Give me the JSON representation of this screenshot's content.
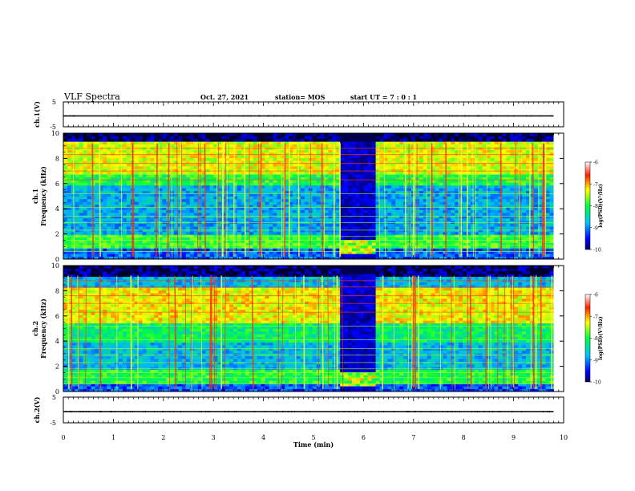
{
  "header": {
    "title": "VLF Spectra",
    "date": "Oct. 27, 2021",
    "station": "station= MOS",
    "start_ut": "start  UT  =   7 : 0  : 1"
  },
  "chart_data": [
    {
      "type": "line",
      "panel": "ch1-waveform",
      "ylabel": "ch.1(V)",
      "yticks": [
        "5",
        "-5"
      ],
      "ylim": [
        -5,
        5
      ],
      "xlim": [
        0,
        10
      ],
      "series": [
        {
          "values_note": "",
          "x": [
            0,
            9.8
          ],
          "y": [
            0,
            0
          ]
        }
      ]
    },
    {
      "type": "heatmap",
      "panel": "ch1-spectrogram",
      "ylabel": "Frequency (kHz)",
      "channel_label": "ch.1",
      "xlim": [
        0,
        10
      ],
      "ylim": [
        0,
        10
      ],
      "yticks": [
        "0",
        "2",
        "4",
        "6",
        "8",
        "10"
      ],
      "data_extent_x": [
        0,
        9.8
      ],
      "gap_interval_min": [
        5.6,
        6.2
      ],
      "colorbar": {
        "label": "log(PSD)(V²/Hz)",
        "ticks": [
          "-6",
          "-7",
          "-8",
          "-9",
          "-10"
        ],
        "range": [
          -10,
          -6
        ]
      }
    },
    {
      "type": "heatmap",
      "panel": "ch2-spectrogram",
      "ylabel": "Frequency (kHz)",
      "channel_label": "ch.2",
      "xlim": [
        0,
        10
      ],
      "ylim": [
        0,
        10
      ],
      "yticks": [
        "0",
        "2",
        "4",
        "6",
        "8",
        "10"
      ],
      "data_extent_x": [
        0,
        9.8
      ],
      "gap_interval_min": [
        5.6,
        6.2
      ],
      "colorbar": {
        "label": "log(PSD)(V²/Hz)",
        "ticks": [
          "-6",
          "-7",
          "-8",
          "-9",
          "-10"
        ],
        "range": [
          -10,
          -6
        ]
      }
    },
    {
      "type": "line",
      "panel": "ch2-waveform",
      "ylabel": "ch.2(V)",
      "yticks": [
        "5",
        "-5"
      ],
      "ylim": [
        -5,
        5
      ],
      "xlim": [
        0,
        10
      ],
      "series": [
        {
          "x": [
            0,
            9.8
          ],
          "y": [
            0,
            0
          ]
        }
      ]
    }
  ],
  "xaxis": {
    "label": "Time  (min)",
    "ticks": [
      "0",
      "1",
      "2",
      "3",
      "4",
      "5",
      "6",
      "7",
      "8",
      "9",
      "10"
    ]
  }
}
